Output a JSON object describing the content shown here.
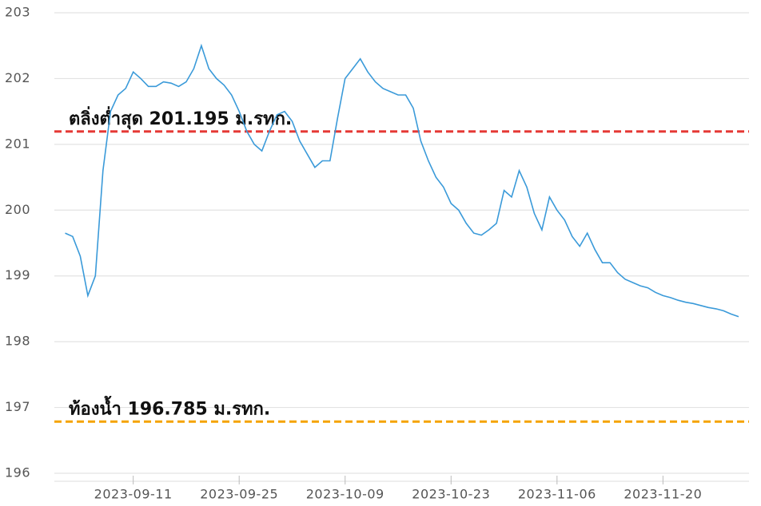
{
  "chart_data": {
    "type": "line",
    "x": [
      "2023-09-02",
      "2023-09-03",
      "2023-09-04",
      "2023-09-05",
      "2023-09-06",
      "2023-09-07",
      "2023-09-08",
      "2023-09-09",
      "2023-09-10",
      "2023-09-11",
      "2023-09-12",
      "2023-09-13",
      "2023-09-14",
      "2023-09-15",
      "2023-09-16",
      "2023-09-17",
      "2023-09-18",
      "2023-09-19",
      "2023-09-20",
      "2023-09-21",
      "2023-09-22",
      "2023-09-23",
      "2023-09-24",
      "2023-09-25",
      "2023-09-26",
      "2023-09-27",
      "2023-09-28",
      "2023-09-29",
      "2023-09-30",
      "2023-10-01",
      "2023-10-02",
      "2023-10-03",
      "2023-10-04",
      "2023-10-05",
      "2023-10-06",
      "2023-10-07",
      "2023-10-08",
      "2023-10-09",
      "2023-10-10",
      "2023-10-11",
      "2023-10-12",
      "2023-10-13",
      "2023-10-14",
      "2023-10-15",
      "2023-10-16",
      "2023-10-17",
      "2023-10-18",
      "2023-10-19",
      "2023-10-20",
      "2023-10-21",
      "2023-10-22",
      "2023-10-23",
      "2023-10-24",
      "2023-10-25",
      "2023-10-26",
      "2023-10-27",
      "2023-10-28",
      "2023-10-29",
      "2023-10-30",
      "2023-10-31",
      "2023-11-01",
      "2023-11-02",
      "2023-11-03",
      "2023-11-04",
      "2023-11-05",
      "2023-11-06",
      "2023-11-07",
      "2023-11-08",
      "2023-11-09",
      "2023-11-10",
      "2023-11-11",
      "2023-11-12",
      "2023-11-13",
      "2023-11-14",
      "2023-11-15",
      "2023-11-16",
      "2023-11-17",
      "2023-11-18",
      "2023-11-19",
      "2023-11-20",
      "2023-11-21",
      "2023-11-22",
      "2023-11-23",
      "2023-11-24",
      "2023-11-25",
      "2023-11-26",
      "2023-11-27",
      "2023-11-28",
      "2023-11-29",
      "2023-11-30"
    ],
    "values": [
      199.65,
      199.6,
      199.3,
      198.7,
      199.0,
      200.6,
      201.5,
      201.75,
      201.85,
      202.1,
      202.0,
      201.88,
      201.88,
      201.95,
      201.93,
      201.88,
      201.95,
      202.15,
      202.5,
      202.15,
      202.0,
      201.9,
      201.75,
      201.5,
      201.2,
      201.0,
      200.9,
      201.2,
      201.45,
      201.5,
      201.35,
      201.05,
      200.85,
      200.65,
      200.75,
      200.75,
      201.4,
      202.0,
      202.15,
      202.3,
      202.1,
      201.95,
      201.85,
      201.8,
      201.75,
      201.75,
      201.55,
      201.05,
      200.75,
      200.5,
      200.35,
      200.1,
      200.0,
      199.8,
      199.65,
      199.62,
      199.7,
      199.8,
      200.3,
      200.2,
      200.6,
      200.35,
      199.95,
      199.7,
      200.2,
      200.0,
      199.85,
      199.6,
      199.45,
      199.65,
      199.4,
      199.2,
      199.2,
      199.05,
      198.95,
      198.9,
      198.85,
      198.82,
      198.75,
      198.7,
      198.67,
      198.63,
      198.6,
      198.58,
      198.55,
      198.52,
      198.5,
      198.47,
      198.42,
      198.38
    ],
    "color": "#3a9ad9",
    "xlim": [
      "2023-09-01",
      "2023-12-01"
    ],
    "xticks": [
      "2023-09-11",
      "2023-09-25",
      "2023-10-09",
      "2023-10-23",
      "2023-11-06",
      "2023-11-20"
    ],
    "ylim": [
      196,
      203
    ],
    "yticks": [
      196,
      197,
      198,
      199,
      200,
      201,
      202,
      203
    ],
    "grid": true,
    "reference_lines": [
      {
        "value": 201.195,
        "label": "ตลิ่งต่ำสุด 201.195 ม.รทก.",
        "color": "#e53935"
      },
      {
        "value": 196.785,
        "label": "ท้องน้ำ 196.785 ม.รทก.",
        "color": "#f5a300"
      }
    ]
  }
}
